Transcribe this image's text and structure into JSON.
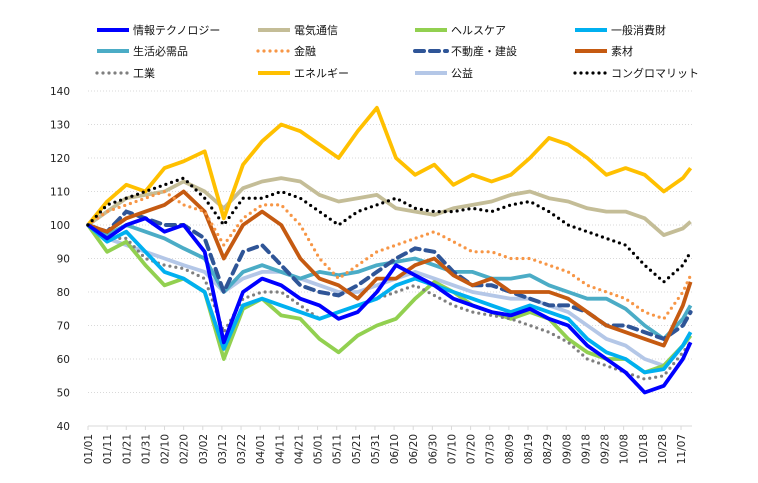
{
  "chart_data": {
    "type": "line",
    "title": "",
    "xlabel": "",
    "ylabel": "",
    "ylim": [
      40,
      140
    ],
    "yticks": [
      40,
      50,
      60,
      70,
      80,
      90,
      100,
      110,
      120,
      130,
      140
    ],
    "grid": "horizontal dotted",
    "legend_placement": "top",
    "x_tick_labels": [
      "01/01",
      "01/11",
      "01/21",
      "01/31",
      "02/10",
      "02/20",
      "03/02",
      "03/12",
      "03/22",
      "04/01",
      "04/11",
      "04/21",
      "05/01",
      "05/11",
      "05/21",
      "05/31",
      "06/10",
      "06/20",
      "06/30",
      "07/10",
      "07/20",
      "07/30",
      "08/09",
      "08/19",
      "08/29",
      "09/08",
      "09/18",
      "09/28",
      "10/08",
      "10/18",
      "10/28",
      "11/07"
    ],
    "x": [
      "01/01",
      "01/11",
      "01/21",
      "01/31",
      "02/10",
      "02/20",
      "03/02",
      "03/12",
      "03/22",
      "04/01",
      "04/11",
      "04/21",
      "05/01",
      "05/11",
      "05/21",
      "05/31",
      "06/10",
      "06/20",
      "06/30",
      "07/10",
      "07/20",
      "07/30",
      "08/09",
      "08/19",
      "08/29",
      "09/08",
      "09/18",
      "09/28",
      "10/08",
      "10/18",
      "10/28",
      "11/07",
      "11/11"
    ],
    "series": [
      {
        "name": "情報テクノロジー",
        "color": "#0000FF",
        "style": "solid",
        "values": [
          100,
          96,
          100,
          102,
          98,
          100,
          92,
          65,
          80,
          84,
          82,
          78,
          76,
          72,
          74,
          80,
          88,
          85,
          82,
          78,
          76,
          74,
          73,
          75,
          72,
          70,
          64,
          60,
          56,
          50,
          52,
          60,
          65
        ]
      },
      {
        "name": "電気通信",
        "color": "#C4BD97",
        "style": "solid",
        "values": [
          100,
          104,
          108,
          109,
          110,
          113,
          110,
          105,
          111,
          113,
          114,
          113,
          109,
          107,
          108,
          109,
          105,
          104,
          103,
          105,
          106,
          107,
          109,
          110,
          108,
          107,
          105,
          104,
          104,
          102,
          97,
          99,
          101
        ]
      },
      {
        "name": "ヘルスケア",
        "color": "#92D050",
        "style": "solid",
        "values": [
          100,
          92,
          95,
          88,
          82,
          84,
          80,
          60,
          75,
          78,
          73,
          72,
          66,
          62,
          67,
          70,
          72,
          78,
          83,
          80,
          76,
          74,
          72,
          74,
          72,
          66,
          62,
          60,
          60,
          56,
          58,
          64,
          67
        ]
      },
      {
        "name": "一般消費財",
        "color": "#00B0F0",
        "style": "solid",
        "values": [
          100,
          95,
          98,
          92,
          86,
          84,
          80,
          63,
          76,
          78,
          76,
          74,
          72,
          74,
          76,
          78,
          82,
          84,
          82,
          80,
          78,
          76,
          74,
          76,
          74,
          72,
          66,
          62,
          60,
          56,
          57,
          64,
          68
        ]
      },
      {
        "name": "生活必需品",
        "color": "#4BACC6",
        "style": "solid",
        "values": [
          100,
          97,
          100,
          98,
          96,
          93,
          90,
          80,
          86,
          88,
          86,
          84,
          86,
          85,
          86,
          88,
          89,
          90,
          88,
          86,
          86,
          84,
          84,
          85,
          82,
          80,
          78,
          78,
          75,
          70,
          66,
          72,
          76
        ]
      },
      {
        "name": "金融",
        "color": "#F79646",
        "style": "dotted",
        "values": [
          100,
          104,
          106,
          108,
          110,
          106,
          104,
          94,
          102,
          106,
          106,
          100,
          90,
          84,
          88,
          92,
          94,
          96,
          98,
          95,
          92,
          92,
          90,
          90,
          88,
          86,
          82,
          80,
          78,
          74,
          72,
          80,
          85
        ]
      },
      {
        "name": "不動産・建設",
        "color": "#2F5597",
        "style": "dashed",
        "values": [
          100,
          98,
          104,
          102,
          100,
          100,
          96,
          80,
          92,
          94,
          88,
          82,
          80,
          79,
          82,
          86,
          90,
          93,
          92,
          86,
          82,
          82,
          80,
          78,
          76,
          76,
          74,
          70,
          70,
          68,
          66,
          70,
          74
        ]
      },
      {
        "name": "素材",
        "color": "#C55A11",
        "style": "solid",
        "values": [
          100,
          98,
          102,
          104,
          106,
          110,
          104,
          90,
          100,
          104,
          100,
          90,
          84,
          82,
          78,
          84,
          84,
          88,
          90,
          85,
          82,
          84,
          80,
          80,
          80,
          78,
          74,
          70,
          68,
          66,
          64,
          76,
          83
        ]
      },
      {
        "name": "工業",
        "color": "#7F7F7F",
        "style": "dotted",
        "values": [
          100,
          96,
          96,
          90,
          88,
          87,
          84,
          68,
          78,
          80,
          80,
          76,
          72,
          74,
          76,
          78,
          80,
          82,
          79,
          76,
          74,
          73,
          72,
          70,
          68,
          65,
          60,
          58,
          56,
          54,
          55,
          62,
          65
        ]
      },
      {
        "name": "エネルギー",
        "color": "#FFC000",
        "style": "solid",
        "values": [
          100,
          107,
          112,
          110,
          117,
          119,
          122,
          102,
          118,
          125,
          130,
          128,
          124,
          120,
          128,
          135,
          120,
          115,
          118,
          112,
          115,
          113,
          115,
          120,
          126,
          124,
          120,
          115,
          117,
          115,
          110,
          114,
          117
        ]
      },
      {
        "name": "公益",
        "color": "#B4C7E7",
        "style": "solid",
        "values": [
          100,
          96,
          94,
          92,
          90,
          88,
          86,
          80,
          84,
          86,
          86,
          84,
          82,
          80,
          80,
          82,
          84,
          86,
          84,
          82,
          80,
          79,
          78,
          78,
          76,
          74,
          70,
          66,
          64,
          60,
          58,
          64,
          68
        ]
      },
      {
        "name": "コングロマリット",
        "color": "#000000",
        "style": "dotted",
        "values": [
          100,
          106,
          108,
          110,
          112,
          114,
          108,
          100,
          108,
          108,
          110,
          108,
          104,
          100,
          104,
          106,
          108,
          105,
          104,
          104,
          105,
          104,
          106,
          107,
          104,
          100,
          98,
          96,
          94,
          88,
          83,
          88,
          92
        ]
      }
    ]
  }
}
